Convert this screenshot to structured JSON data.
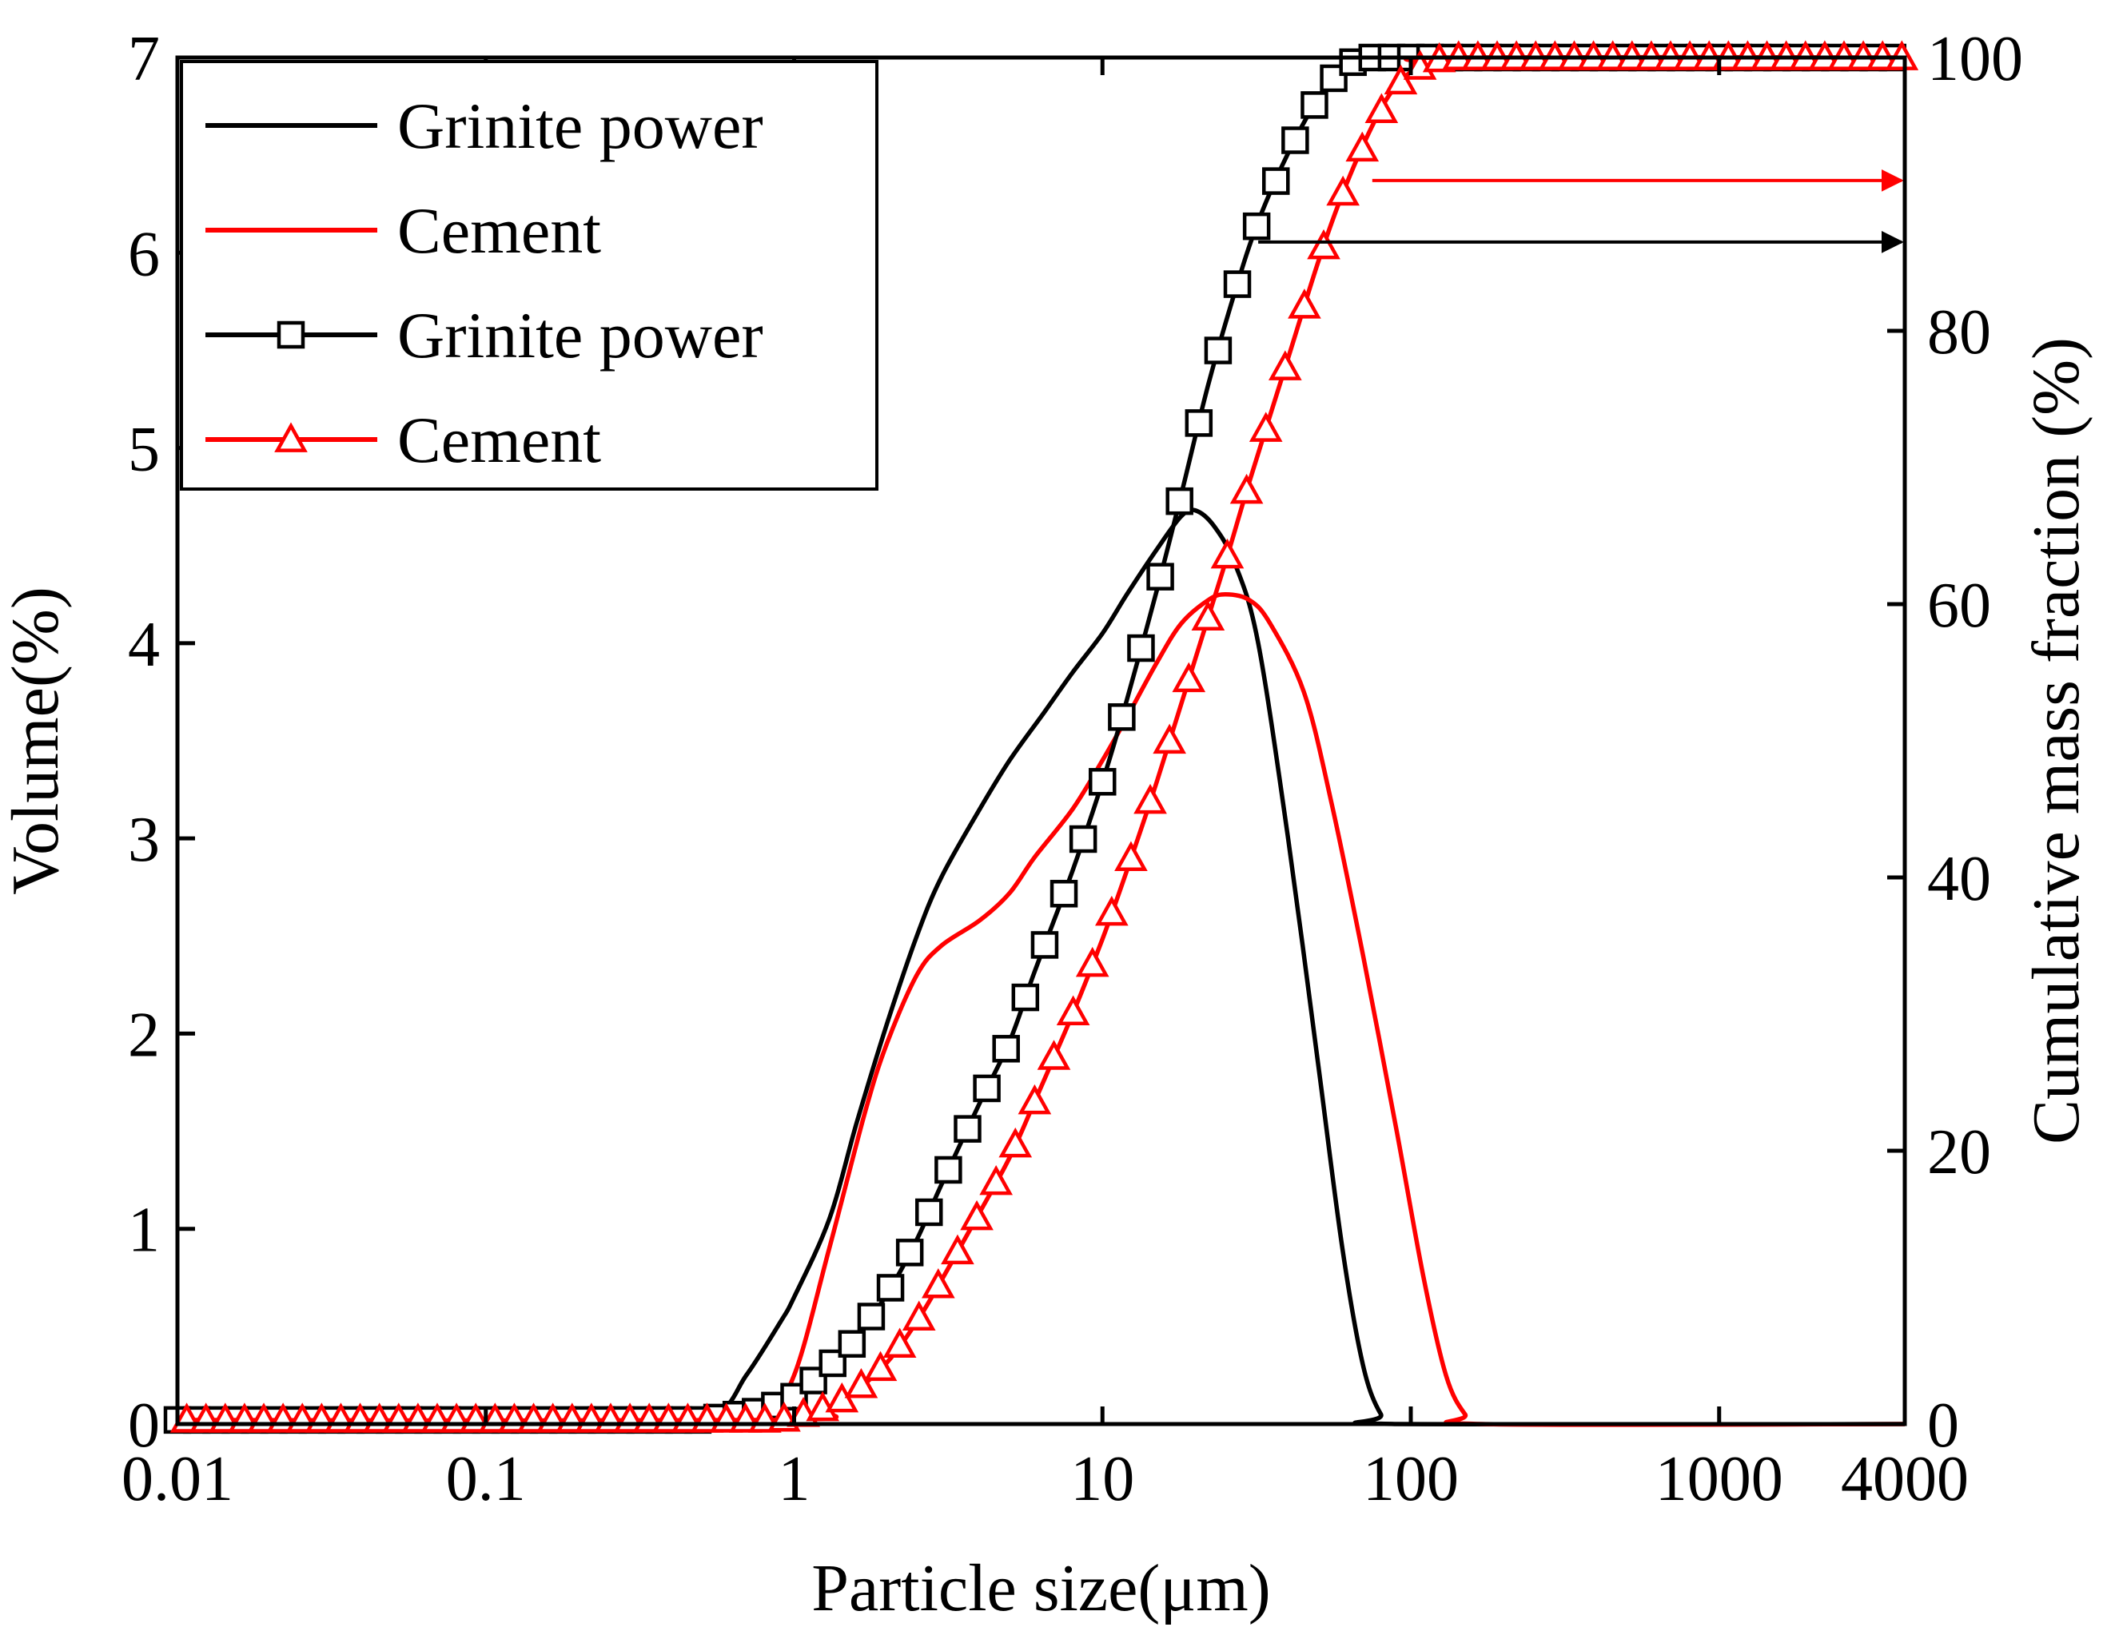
{
  "chart_data": {
    "type": "line",
    "x_scale": "log",
    "xlim": [
      0.01,
      4000
    ],
    "xlabel": "Particle size(μm)",
    "x_ticks": [
      {
        "value": 0.01,
        "label": "0.01"
      },
      {
        "value": 0.1,
        "label": "0.1"
      },
      {
        "value": 1,
        "label": "1"
      },
      {
        "value": 10,
        "label": "10"
      },
      {
        "value": 100,
        "label": "100"
      },
      {
        "value": 1000,
        "label": "1000"
      },
      {
        "value": 4000,
        "label": "4000"
      }
    ],
    "y_left": {
      "label": "Volume(%)",
      "ylim": [
        0,
        7
      ],
      "ticks": [
        {
          "value": 0,
          "label": "0"
        },
        {
          "value": 1,
          "label": "1"
        },
        {
          "value": 2,
          "label": "2"
        },
        {
          "value": 3,
          "label": "3"
        },
        {
          "value": 4,
          "label": "4"
        },
        {
          "value": 5,
          "label": "5"
        },
        {
          "value": 6,
          "label": "6"
        },
        {
          "value": 7,
          "label": "7"
        }
      ]
    },
    "y_right": {
      "label": "Cumulative mass fraction (%)",
      "ylim": [
        0,
        100
      ],
      "ticks": [
        {
          "value": 0,
          "label": "0"
        },
        {
          "value": 20,
          "label": "20"
        },
        {
          "value": 40,
          "label": "40"
        },
        {
          "value": 60,
          "label": "60"
        },
        {
          "value": 80,
          "label": "80"
        },
        {
          "value": 100,
          "label": "100"
        }
      ]
    },
    "grid": false,
    "legend_position": "top-left",
    "series": [
      {
        "name": "Grinite power",
        "kind": "volume",
        "axis": "left",
        "color": "#000000",
        "marker": "none",
        "points": [
          [
            0.01,
            0.04
          ],
          [
            0.3,
            0.04
          ],
          [
            0.55,
            0.05
          ],
          [
            0.7,
            0.25
          ],
          [
            0.9,
            0.52
          ],
          [
            1.0,
            0.65
          ],
          [
            1.3,
            1.05
          ],
          [
            1.6,
            1.55
          ],
          [
            2.0,
            2.05
          ],
          [
            2.5,
            2.5
          ],
          [
            3.0,
            2.8
          ],
          [
            4.0,
            3.15
          ],
          [
            5.0,
            3.4
          ],
          [
            6.5,
            3.65
          ],
          [
            8.0,
            3.85
          ],
          [
            10.0,
            4.05
          ],
          [
            12.0,
            4.25
          ],
          [
            15.0,
            4.48
          ],
          [
            18.0,
            4.65
          ],
          [
            20.0,
            4.68
          ],
          [
            23.0,
            4.6
          ],
          [
            27.0,
            4.4
          ],
          [
            32.0,
            4.0
          ],
          [
            40.0,
            3.0
          ],
          [
            50.0,
            1.85
          ],
          [
            60.0,
            0.9
          ],
          [
            70.0,
            0.3
          ],
          [
            80.0,
            0.05
          ],
          [
            90.0,
            0.0
          ],
          [
            4000,
            0.0
          ]
        ]
      },
      {
        "name": "Cement",
        "kind": "volume",
        "axis": "left",
        "color": "#ff0000",
        "marker": "none",
        "points": [
          [
            0.01,
            0.04
          ],
          [
            0.5,
            0.04
          ],
          [
            0.8,
            0.06
          ],
          [
            1.0,
            0.25
          ],
          [
            1.3,
            0.9
          ],
          [
            1.7,
            1.6
          ],
          [
            2.0,
            1.95
          ],
          [
            2.5,
            2.3
          ],
          [
            3.0,
            2.45
          ],
          [
            4.0,
            2.58
          ],
          [
            5.0,
            2.72
          ],
          [
            6.0,
            2.9
          ],
          [
            8.0,
            3.15
          ],
          [
            10.0,
            3.4
          ],
          [
            12.0,
            3.62
          ],
          [
            15.0,
            3.9
          ],
          [
            18.0,
            4.1
          ],
          [
            22.0,
            4.22
          ],
          [
            25.0,
            4.25
          ],
          [
            30.0,
            4.22
          ],
          [
            35.0,
            4.1
          ],
          [
            45.0,
            3.75
          ],
          [
            55.0,
            3.2
          ],
          [
            70.0,
            2.4
          ],
          [
            90.0,
            1.5
          ],
          [
            110.0,
            0.75
          ],
          [
            130.0,
            0.25
          ],
          [
            150.0,
            0.05
          ],
          [
            170.0,
            0.0
          ],
          [
            4000,
            0.0
          ]
        ]
      },
      {
        "name": "Grinite power",
        "kind": "cumulative",
        "axis": "right",
        "color": "#000000",
        "marker": "square",
        "points": [
          [
            0.01,
            0.3
          ],
          [
            0.5,
            0.3
          ],
          [
            0.8,
            1.0
          ],
          [
            1.0,
            2.0
          ],
          [
            1.2,
            3.5
          ],
          [
            1.5,
            5.5
          ],
          [
            2.0,
            9.5
          ],
          [
            2.5,
            13.5
          ],
          [
            3.0,
            17.5
          ],
          [
            4.0,
            23.5
          ],
          [
            5.0,
            28.0
          ],
          [
            6.0,
            33.0
          ],
          [
            8.0,
            40.5
          ],
          [
            10.0,
            47.0
          ],
          [
            12.0,
            53.0
          ],
          [
            15.0,
            61.0
          ],
          [
            18.0,
            68.0
          ],
          [
            22.0,
            76.0
          ],
          [
            27.0,
            83.0
          ],
          [
            32.0,
            88.0
          ],
          [
            40.0,
            93.0
          ],
          [
            50.0,
            97.0
          ],
          [
            60.0,
            99.3
          ],
          [
            70.0,
            100.0
          ],
          [
            100.0,
            100.0
          ],
          [
            4000,
            100.0
          ]
        ]
      },
      {
        "name": "Cement",
        "kind": "cumulative",
        "axis": "right",
        "color": "#ff0000",
        "marker": "triangle",
        "points": [
          [
            0.01,
            0.3
          ],
          [
            0.9,
            0.3
          ],
          [
            1.2,
            1.0
          ],
          [
            1.5,
            2.0
          ],
          [
            2.0,
            4.5
          ],
          [
            2.5,
            7.5
          ],
          [
            3.0,
            10.5
          ],
          [
            4.0,
            15.5
          ],
          [
            5.0,
            19.5
          ],
          [
            6.0,
            23.5
          ],
          [
            8.0,
            30.0
          ],
          [
            10.0,
            35.5
          ],
          [
            12.0,
            40.5
          ],
          [
            15.0,
            47.0
          ],
          [
            20.0,
            56.0
          ],
          [
            25.0,
            63.0
          ],
          [
            30.0,
            69.0
          ],
          [
            40.0,
            78.0
          ],
          [
            50.0,
            85.0
          ],
          [
            60.0,
            90.0
          ],
          [
            75.0,
            95.0
          ],
          [
            90.0,
            98.0
          ],
          [
            110.0,
            99.5
          ],
          [
            130.0,
            100.0
          ],
          [
            4000,
            100.0
          ]
        ]
      }
    ],
    "annotations": [
      {
        "type": "arrow",
        "color": "#ff0000",
        "direction": "right",
        "from_x": 75,
        "to_x": 4000,
        "y": 91,
        "axis": "right"
      },
      {
        "type": "arrow",
        "color": "#000000",
        "direction": "right",
        "from_x": 32,
        "to_x": 4000,
        "y": 86.5,
        "axis": "right"
      }
    ]
  }
}
